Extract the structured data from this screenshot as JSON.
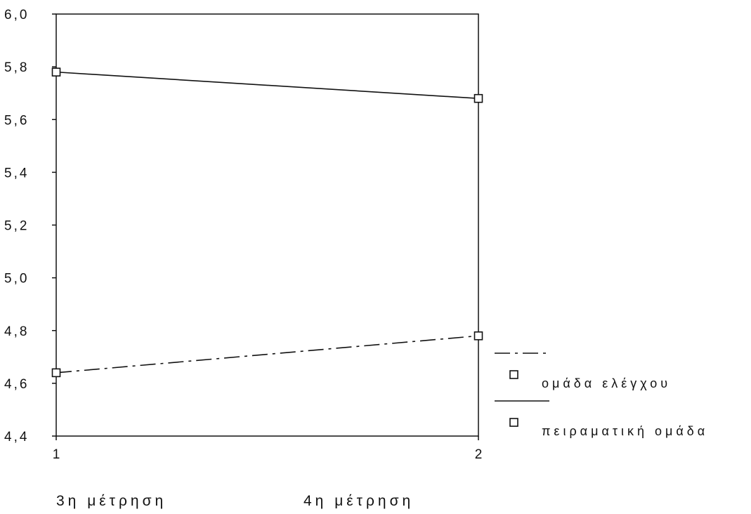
{
  "chart_data": {
    "type": "line",
    "x": [
      "1",
      "2"
    ],
    "ylim": [
      4.4,
      6.0
    ],
    "yticks": [
      "6,0",
      "5,8",
      "5,6",
      "5,4",
      "5,2",
      "5,0",
      "4,8",
      "4,6",
      "4,4"
    ],
    "xticks": [
      "1",
      "2"
    ],
    "category_labels": [
      "3η μέτρηση",
      "4η μέτρηση"
    ],
    "grid": false,
    "legend_position": "right",
    "series": [
      {
        "name": "ομάδα ελέγχου",
        "values": [
          4.64,
          4.78
        ],
        "line_style": "dash-dot",
        "marker": "square"
      },
      {
        "name": "πειραματική ομάδα",
        "values": [
          5.78,
          5.68
        ],
        "line_style": "solid",
        "marker": "square"
      }
    ]
  }
}
